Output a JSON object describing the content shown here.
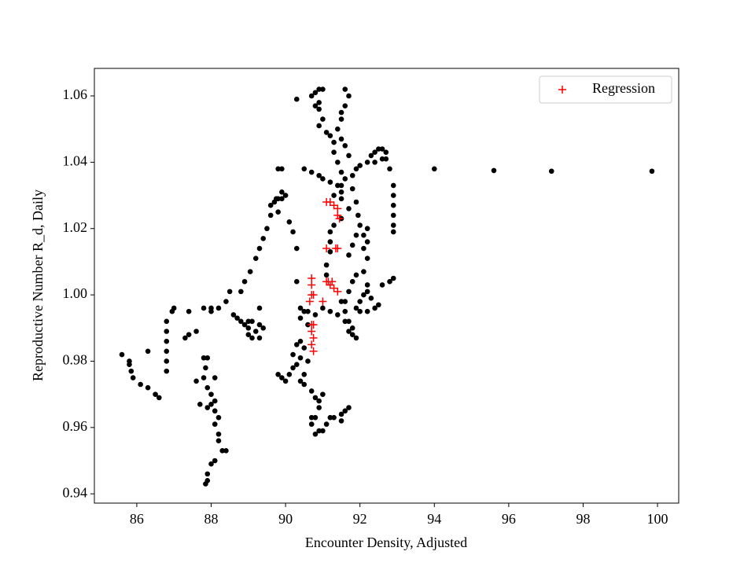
{
  "chart_data": {
    "type": "scatter",
    "xlabel": "Encounter Density, Adjusted",
    "ylabel": "Reproductive Number R_d, Daily",
    "xlim": [
      84.86,
      100.57
    ],
    "ylim": [
      0.9372,
      1.0683
    ],
    "xticks": [
      86,
      88,
      90,
      92,
      94,
      96,
      98,
      100
    ],
    "yticks": [
      0.94,
      0.96,
      0.98,
      {
        "value": 1,
        "label": "1.00"
      },
      1.02,
      1.04,
      1.06
    ],
    "legend": "upper right",
    "series": [
      {
        "color": "#000000",
        "marker": "circle",
        "x": [
          85.6,
          85.8,
          85.8,
          85.85,
          85.9,
          86.1,
          86.3,
          86.5,
          86.6,
          86.3,
          86.8,
          86.8,
          86.8,
          86.8,
          86.8,
          86.8,
          86.95,
          87.0,
          87.3,
          87.4,
          87.4,
          87.6,
          87.6,
          87.8,
          88.0,
          88.2,
          88.0,
          88.4,
          88.5,
          88.6,
          88.7,
          88.8,
          88.9,
          89.0,
          89.0,
          89.1,
          89.2,
          89.3,
          89.3,
          89.4,
          89.0,
          89.1,
          88.9,
          88.8,
          89.05,
          89.2,
          89.3,
          89.4,
          89.5,
          89.6,
          89.6,
          89.7,
          89.8,
          89.9,
          90.0,
          89.9,
          89.75,
          89.8,
          90.1,
          90.2,
          90.3,
          90.3,
          90.4,
          89.3,
          87.8,
          87.9,
          87.85,
          87.8,
          87.9,
          88.0,
          88.1,
          87.7,
          87.9,
          88.1,
          88.2,
          88.1,
          88.2,
          88.2,
          88.3,
          88.4,
          88.1,
          88.0,
          87.9,
          87.9,
          87.85,
          88.0,
          88.1,
          89.8,
          89.9,
          90.0,
          90.1,
          90.2,
          90.3,
          90.2,
          90.3,
          90.4,
          90.5,
          90.4,
          90.6,
          90.5,
          90.4,
          90.5,
          90.7,
          90.8,
          90.9,
          91.0,
          90.9,
          90.8,
          90.7,
          90.7,
          90.8,
          90.9,
          91.0,
          91.1,
          91.2,
          91.3,
          91.5,
          91.6,
          91.7,
          91.5,
          90.6,
          90.5,
          90.6,
          90.8,
          91.0,
          91.2,
          91.4,
          90.4,
          90.3,
          90.7,
          90.8,
          90.9,
          91.0,
          90.9,
          90.8,
          90.9,
          91.0,
          90.9,
          91.1,
          91.2,
          91.3,
          91.3,
          91.4,
          91.5,
          91.6,
          91.5,
          91.5,
          91.7,
          91.5,
          91.3,
          91.2,
          91.2,
          91.2,
          91.1,
          91.1,
          91.6,
          91.7,
          91.6,
          91.5,
          91.5,
          91.4,
          91.5,
          91.6,
          91.7,
          90.5,
          90.7,
          90.9,
          91.0,
          91.2,
          91.4,
          89.8,
          89.9,
          91.3,
          91.5,
          91.8,
          91.9,
          92.0,
          92.2,
          92.3,
          92.4,
          92.5,
          92.6,
          92.7,
          92.7,
          92.8,
          92.9,
          92.9,
          92.9,
          92.9,
          92.9,
          92.9,
          92.6,
          92.4,
          91.8,
          91.9,
          91.95,
          92.1,
          92.1,
          92.2,
          92.1,
          92.2,
          92.1,
          92.0,
          91.9,
          92.0,
          92.2,
          92.4,
          92.6,
          92.8,
          92.9,
          91.8,
          91.8,
          91.9,
          91.7,
          91.6,
          91.6,
          91.7,
          91.8,
          91.9,
          91.7,
          91.8,
          91.9,
          92.0,
          92.2,
          92.2,
          92.5,
          92.3,
          92.2,
          91.5,
          91.6,
          91.7,
          94.0,
          95.6,
          97.15,
          99.85
        ],
        "y": [
          0.982,
          0.98,
          0.979,
          0.977,
          0.975,
          0.973,
          0.972,
          0.97,
          0.969,
          0.983,
          0.977,
          0.98,
          0.983,
          0.986,
          0.989,
          0.992,
          0.995,
          0.996,
          0.987,
          0.988,
          0.995,
          0.989,
          0.974,
          0.996,
          0.996,
          0.996,
          0.995,
          0.998,
          1.001,
          0.994,
          0.993,
          0.992,
          0.991,
          0.99,
          0.988,
          0.987,
          0.989,
          0.987,
          0.991,
          0.99,
          0.992,
          0.992,
          1.004,
          1.001,
          1.007,
          1.011,
          1.014,
          1.017,
          1.02,
          1.024,
          1.027,
          1.028,
          1.029,
          1.029,
          1.03,
          1.031,
          1.029,
          1.025,
          1.022,
          1.019,
          1.014,
          1.004,
          0.996,
          0.996,
          0.981,
          0.981,
          0.978,
          0.975,
          0.972,
          0.97,
          0.968,
          0.967,
          0.966,
          0.965,
          0.963,
          0.961,
          0.958,
          0.956,
          0.953,
          0.953,
          0.95,
          0.949,
          0.946,
          0.944,
          0.943,
          0.967,
          0.975,
          0.976,
          0.975,
          0.974,
          0.976,
          0.978,
          0.979,
          0.982,
          0.985,
          0.986,
          0.984,
          0.981,
          0.98,
          0.976,
          0.974,
          0.973,
          0.971,
          0.969,
          0.968,
          0.97,
          0.966,
          0.963,
          0.961,
          0.963,
          0.958,
          0.959,
          0.959,
          0.961,
          0.963,
          0.963,
          0.964,
          0.965,
          0.966,
          0.962,
          0.991,
          0.995,
          0.995,
          0.994,
          0.996,
          0.995,
          0.994,
          0.993,
          1.059,
          1.06,
          1.061,
          1.062,
          1.062,
          1.058,
          1.057,
          1.056,
          1.053,
          1.051,
          1.049,
          1.048,
          1.046,
          1.043,
          1.04,
          1.037,
          1.035,
          1.033,
          1.031,
          1.026,
          1.023,
          1.021,
          1.019,
          1.016,
          1.013,
          1.009,
          1.006,
          1.062,
          1.06,
          1.057,
          1.055,
          1.053,
          1.05,
          1.047,
          1.045,
          1.042,
          1.038,
          1.037,
          1.036,
          1.035,
          1.034,
          1.033,
          1.038,
          1.038,
          1.03,
          1.029,
          1.036,
          1.038,
          1.039,
          1.04,
          1.042,
          1.043,
          1.044,
          1.044,
          1.043,
          1.041,
          1.038,
          1.033,
          1.03,
          1.027,
          1.024,
          1.021,
          1.019,
          1.041,
          1.04,
          1.032,
          1.028,
          1.024,
          1.018,
          1.014,
          1.011,
          1.007,
          1.003,
          1.0,
          0.998,
          0.996,
          0.995,
          0.995,
          0.996,
          1.003,
          1.004,
          1.005,
          0.99,
          0.988,
          0.987,
          0.992,
          0.995,
          0.998,
          1.001,
          1.004,
          1.006,
          1.012,
          1.015,
          1.018,
          1.021,
          1.016,
          1.02,
          0.997,
          0.999,
          1.001,
          0.998,
          0.992,
          0.989,
          1.038,
          1.0375,
          1.0373,
          1.0373
        ]
      },
      {
        "name": "Regression",
        "color": "#ff0000",
        "marker": "plus",
        "x": [
          91.1,
          91.2,
          91.3,
          91.4,
          91.45,
          91.4,
          91.35,
          91.4,
          91.1,
          90.7,
          90.7,
          90.7,
          90.75,
          91.1,
          91.15,
          91.25,
          91.2,
          91.3,
          91.4,
          90.65,
          91.0,
          90.7,
          90.75,
          90.7,
          90.75,
          90.7,
          90.75
        ],
        "y": [
          1.028,
          1.028,
          1.027,
          1.026,
          1.023,
          1.024,
          1.014,
          1.014,
          1.014,
          1.005,
          1.003,
          1.0,
          1.0,
          1.004,
          1.004,
          1.004,
          1.003,
          1.002,
          1.001,
          0.998,
          0.998,
          0.991,
          0.991,
          0.989,
          0.987,
          0.985,
          0.983
        ]
      }
    ]
  }
}
